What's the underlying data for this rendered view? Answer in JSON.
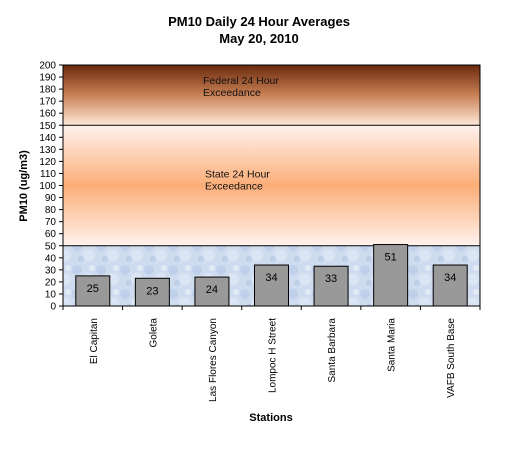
{
  "chart_data": {
    "type": "bar",
    "title": "PM10 Daily 24 Hour Averages",
    "subtitle": "May 20, 2010",
    "xlabel": "Stations",
    "ylabel": "PM10 (ug/m3)",
    "ylim": [
      0,
      200
    ],
    "ytick_step": 10,
    "categories": [
      "El Capitan",
      "Goleta",
      "Las Flores Canyon",
      "Lompoc H Street",
      "Santa Barbara",
      "Santa Maria",
      "VAFB South Base"
    ],
    "values": [
      25,
      23,
      24,
      34,
      33,
      51,
      34
    ],
    "data_labels": [
      "25",
      "23",
      "24",
      "34",
      "33",
      "51",
      "34"
    ],
    "bands": [
      {
        "label_line1": "Federal 24 Hour",
        "label_line2": "Exceedance",
        "from": 150,
        "to": 200
      },
      {
        "label_line1": "State 24 Hour",
        "label_line2": "Exceedance",
        "from": 50,
        "to": 150
      }
    ],
    "thresholds": [
      50,
      150
    ],
    "colors": {
      "bar": "#999999",
      "federal_top": "#6b2a0e",
      "federal_mid": "#d79a6a",
      "federal_bottom": "#ffe5d2",
      "state_edge": "#fff0ea",
      "state_mid": "#fbb07a",
      "below": "#c9d8ee"
    }
  }
}
